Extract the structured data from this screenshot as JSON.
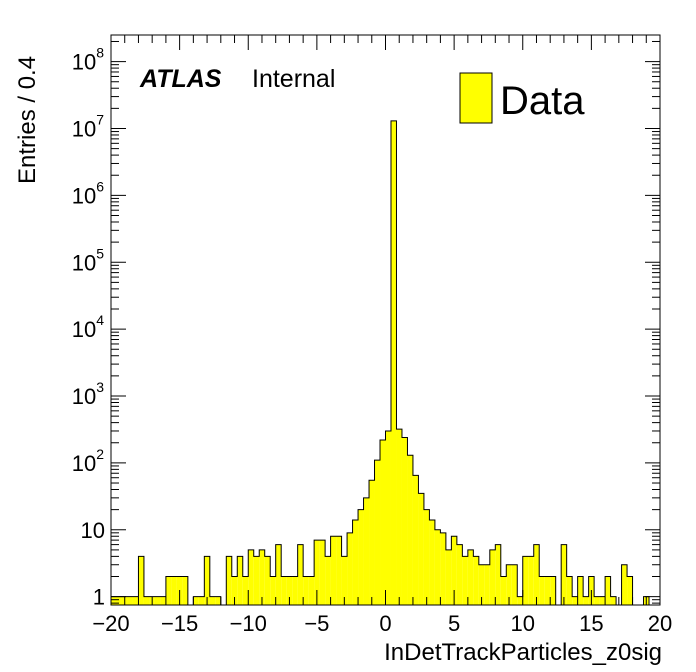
{
  "chart_data": {
    "type": "bar",
    "subtype": "histogram-step-filled",
    "xlabel": "InDetTrackParticles_z0sig",
    "ylabel": "Entries / 0.4",
    "xlim": [
      -20,
      20
    ],
    "ylim": [
      0.75,
      250000000
    ],
    "yscale": "log",
    "bin_width": 0.4,
    "x_tick_labels": [
      "−20",
      "−15",
      "−10",
      "−5",
      "0",
      "5",
      "10",
      "15",
      "20"
    ],
    "x_ticks": [
      -20,
      -15,
      -10,
      -5,
      0,
      5,
      10,
      15,
      20
    ],
    "y_ticks": [
      {
        "value": 1,
        "base": "1",
        "exp": ""
      },
      {
        "value": 10,
        "base": "10",
        "exp": ""
      },
      {
        "value": 100,
        "base": "10",
        "exp": "2"
      },
      {
        "value": 1000,
        "base": "10",
        "exp": "3"
      },
      {
        "value": 10000,
        "base": "10",
        "exp": "4"
      },
      {
        "value": 100000,
        "base": "10",
        "exp": "5"
      },
      {
        "value": 1000000,
        "base": "10",
        "exp": "6"
      },
      {
        "value": 10000000,
        "base": "10",
        "exp": "7"
      },
      {
        "value": 100000000,
        "base": "10",
        "exp": "8"
      }
    ],
    "label_bold": "ATLAS",
    "label_status": "Internal",
    "legend": [
      {
        "name": "Data",
        "color": "#ffff00"
      }
    ],
    "legend_position": "top-right",
    "fill_color": "#ffff00",
    "line_color": "#000000",
    "bins": [
      [
        -20.0,
        1
      ],
      [
        -19.6,
        1
      ],
      [
        -19.2,
        1
      ],
      [
        -18.8,
        1
      ],
      [
        -18.4,
        1
      ],
      [
        -18.0,
        4
      ],
      [
        -17.6,
        1
      ],
      [
        -17.2,
        1
      ],
      [
        -16.8,
        1
      ],
      [
        -16.4,
        1
      ],
      [
        -16.0,
        2
      ],
      [
        -15.6,
        2
      ],
      [
        -15.2,
        2
      ],
      [
        -14.8,
        2
      ],
      [
        -14.4,
        0
      ],
      [
        -14.0,
        1
      ],
      [
        -13.6,
        1
      ],
      [
        -13.2,
        4
      ],
      [
        -12.8,
        1
      ],
      [
        -12.4,
        1
      ],
      [
        -12.0,
        0
      ],
      [
        -11.6,
        4
      ],
      [
        -11.2,
        2
      ],
      [
        -10.8,
        4
      ],
      [
        -10.4,
        2
      ],
      [
        -10.0,
        5
      ],
      [
        -9.6,
        4
      ],
      [
        -9.2,
        5
      ],
      [
        -8.8,
        4
      ],
      [
        -8.4,
        2
      ],
      [
        -8.0,
        6
      ],
      [
        -7.6,
        2
      ],
      [
        -7.2,
        2
      ],
      [
        -6.8,
        2
      ],
      [
        -6.4,
        6
      ],
      [
        -6.0,
        2
      ],
      [
        -5.6,
        2
      ],
      [
        -5.2,
        7
      ],
      [
        -4.8,
        7
      ],
      [
        -4.4,
        4
      ],
      [
        -4.0,
        8
      ],
      [
        -3.6,
        8
      ],
      [
        -3.2,
        4
      ],
      [
        -2.8,
        9
      ],
      [
        -2.4,
        14
      ],
      [
        -2.0,
        20
      ],
      [
        -1.6,
        30
      ],
      [
        -1.2,
        55
      ],
      [
        -0.8,
        110
      ],
      [
        -0.4,
        220
      ],
      [
        0.0,
        300
      ],
      [
        0.4,
        13000000
      ],
      [
        0.8,
        320
      ],
      [
        1.2,
        240
      ],
      [
        1.6,
        130
      ],
      [
        2.0,
        65
      ],
      [
        2.4,
        35
      ],
      [
        2.8,
        20
      ],
      [
        3.2,
        14
      ],
      [
        3.6,
        10
      ],
      [
        4.0,
        9
      ],
      [
        4.4,
        5
      ],
      [
        4.8,
        8
      ],
      [
        5.2,
        6
      ],
      [
        5.6,
        4
      ],
      [
        6.0,
        5
      ],
      [
        6.4,
        4
      ],
      [
        6.8,
        3
      ],
      [
        7.2,
        3
      ],
      [
        7.6,
        5
      ],
      [
        8.0,
        6
      ],
      [
        8.4,
        2
      ],
      [
        8.8,
        3
      ],
      [
        9.2,
        3
      ],
      [
        9.6,
        1
      ],
      [
        10.0,
        4
      ],
      [
        10.4,
        4
      ],
      [
        10.8,
        6
      ],
      [
        11.2,
        2
      ],
      [
        11.6,
        2
      ],
      [
        12.0,
        2
      ],
      [
        12.4,
        0
      ],
      [
        12.8,
        6
      ],
      [
        13.2,
        2
      ],
      [
        13.6,
        1
      ],
      [
        14.0,
        2
      ],
      [
        14.4,
        1
      ],
      [
        14.8,
        2
      ],
      [
        15.2,
        1
      ],
      [
        15.6,
        1
      ],
      [
        16.0,
        2
      ],
      [
        16.4,
        1
      ],
      [
        16.8,
        0
      ],
      [
        17.2,
        3
      ],
      [
        17.6,
        2
      ],
      [
        18.0,
        0
      ],
      [
        18.4,
        0
      ],
      [
        18.8,
        1
      ],
      [
        19.2,
        0
      ],
      [
        19.6,
        0
      ]
    ]
  }
}
